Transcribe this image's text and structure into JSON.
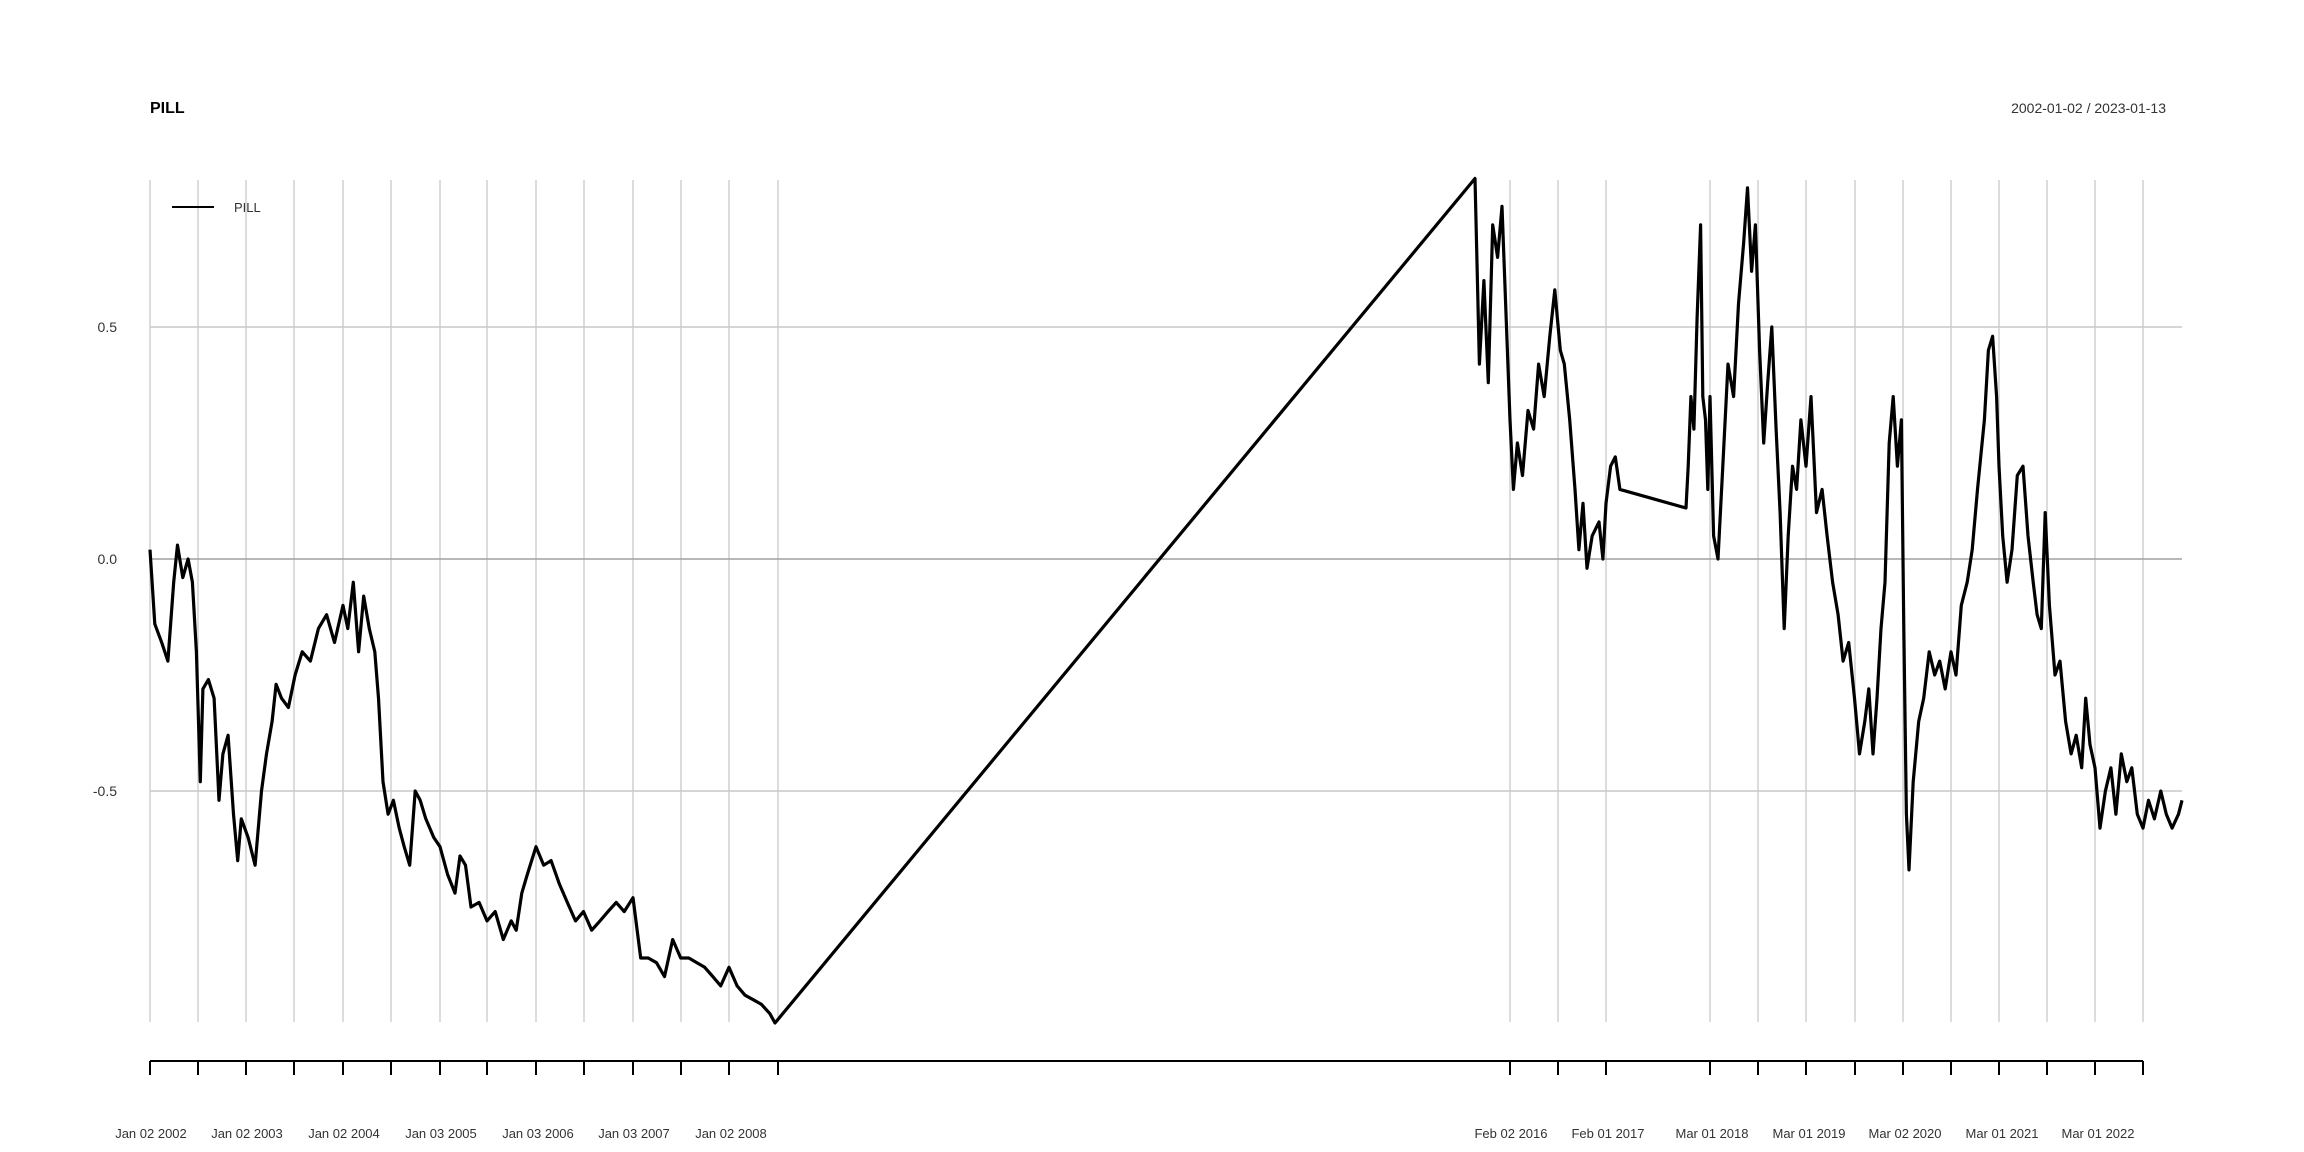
{
  "chart_data": {
    "type": "line",
    "title": "PILL",
    "date_range": "2002-01-02 / 2023-01-13",
    "legend": {
      "position": "top-left",
      "entries": [
        "PILL"
      ]
    },
    "grid": true,
    "ylim": [
      -1.0,
      0.82
    ],
    "yticks": [
      -0.5,
      0.0,
      0.5
    ],
    "ytick_labels": [
      "-0.5",
      "0.0",
      "0.5"
    ],
    "x_axis_type": "date",
    "xtick_labels": [
      "Jan 02 2002",
      "Jan 02 2003",
      "Jan 02 2004",
      "Jan 03 2005",
      "Jan 03 2006",
      "Jan 03 2007",
      "Jan 02 2008",
      "Feb 02 2016",
      "Feb 01 2017",
      "Mar 01 2018",
      "Mar 01 2019",
      "Mar 02 2020",
      "Mar 01 2021",
      "Mar 01 2022"
    ],
    "series": [
      {
        "name": "PILL",
        "color": "#000000",
        "points": [
          [
            "2002-01-02",
            0.02
          ],
          [
            "2002-01-20",
            -0.14
          ],
          [
            "2002-02-15",
            -0.18
          ],
          [
            "2002-03-10",
            -0.22
          ],
          [
            "2002-04-01",
            -0.05
          ],
          [
            "2002-04-15",
            0.03
          ],
          [
            "2002-05-05",
            -0.04
          ],
          [
            "2002-05-25",
            0.0
          ],
          [
            "2002-06-10",
            -0.05
          ],
          [
            "2002-06-25",
            -0.2
          ],
          [
            "2002-07-10",
            -0.48
          ],
          [
            "2002-07-20",
            -0.28
          ],
          [
            "2002-08-10",
            -0.26
          ],
          [
            "2002-09-01",
            -0.3
          ],
          [
            "2002-09-20",
            -0.52
          ],
          [
            "2002-10-05",
            -0.42
          ],
          [
            "2002-10-25",
            -0.38
          ],
          [
            "2002-11-15",
            -0.55
          ],
          [
            "2002-12-01",
            -0.65
          ],
          [
            "2002-12-15",
            -0.56
          ],
          [
            "2003-01-10",
            -0.6
          ],
          [
            "2003-02-05",
            -0.66
          ],
          [
            "2003-03-01",
            -0.5
          ],
          [
            "2003-03-20",
            -0.42
          ],
          [
            "2003-04-10",
            -0.35
          ],
          [
            "2003-04-25",
            -0.27
          ],
          [
            "2003-05-15",
            -0.3
          ],
          [
            "2003-06-10",
            -0.32
          ],
          [
            "2003-07-05",
            -0.25
          ],
          [
            "2003-08-01",
            -0.2
          ],
          [
            "2003-09-01",
            -0.22
          ],
          [
            "2003-10-01",
            -0.15
          ],
          [
            "2003-11-01",
            -0.12
          ],
          [
            "2003-12-01",
            -0.18
          ],
          [
            "2004-01-02",
            -0.1
          ],
          [
            "2004-01-20",
            -0.15
          ],
          [
            "2004-02-10",
            -0.05
          ],
          [
            "2004-03-01",
            -0.2
          ],
          [
            "2004-03-20",
            -0.08
          ],
          [
            "2004-04-10",
            -0.15
          ],
          [
            "2004-05-01",
            -0.2
          ],
          [
            "2004-05-15",
            -0.3
          ],
          [
            "2004-06-01",
            -0.48
          ],
          [
            "2004-06-20",
            -0.55
          ],
          [
            "2004-07-10",
            -0.52
          ],
          [
            "2004-08-01",
            -0.58
          ],
          [
            "2004-08-20",
            -0.62
          ],
          [
            "2004-09-10",
            -0.66
          ],
          [
            "2004-10-01",
            -0.5
          ],
          [
            "2004-10-20",
            -0.52
          ],
          [
            "2004-11-10",
            -0.56
          ],
          [
            "2004-12-10",
            -0.6
          ],
          [
            "2005-01-03",
            -0.62
          ],
          [
            "2005-02-01",
            -0.68
          ],
          [
            "2005-03-01",
            -0.72
          ],
          [
            "2005-03-20",
            -0.64
          ],
          [
            "2005-04-10",
            -0.66
          ],
          [
            "2005-05-01",
            -0.75
          ],
          [
            "2005-06-01",
            -0.74
          ],
          [
            "2005-07-01",
            -0.78
          ],
          [
            "2005-08-01",
            -0.76
          ],
          [
            "2005-09-01",
            -0.82
          ],
          [
            "2005-10-01",
            -0.78
          ],
          [
            "2005-10-20",
            -0.8
          ],
          [
            "2005-11-10",
            -0.72
          ],
          [
            "2005-12-01",
            -0.68
          ],
          [
            "2006-01-03",
            -0.62
          ],
          [
            "2006-02-01",
            -0.66
          ],
          [
            "2006-03-01",
            -0.65
          ],
          [
            "2006-04-01",
            -0.7
          ],
          [
            "2006-05-01",
            -0.74
          ],
          [
            "2006-06-01",
            -0.78
          ],
          [
            "2006-07-01",
            -0.76
          ],
          [
            "2006-08-01",
            -0.8
          ],
          [
            "2006-09-01",
            -0.78
          ],
          [
            "2006-10-01",
            -0.76
          ],
          [
            "2006-11-01",
            -0.74
          ],
          [
            "2006-12-01",
            -0.76
          ],
          [
            "2007-01-03",
            -0.73
          ],
          [
            "2007-02-01",
            -0.86
          ],
          [
            "2007-03-01",
            -0.86
          ],
          [
            "2007-04-01",
            -0.87
          ],
          [
            "2007-05-01",
            -0.9
          ],
          [
            "2007-06-01",
            -0.82
          ],
          [
            "2007-07-01",
            -0.86
          ],
          [
            "2007-08-01",
            -0.86
          ],
          [
            "2007-09-01",
            -0.87
          ],
          [
            "2007-10-01",
            -0.88
          ],
          [
            "2007-11-01",
            -0.9
          ],
          [
            "2007-12-01",
            -0.92
          ],
          [
            "2008-01-02",
            -0.88
          ],
          [
            "2008-02-01",
            -0.92
          ],
          [
            "2008-03-01",
            -0.94
          ],
          [
            "2008-04-01",
            -0.95
          ],
          [
            "2008-05-01",
            -0.96
          ],
          [
            "2008-06-01",
            -0.98
          ],
          [
            "2008-06-20",
            -1.0
          ],
          [
            "2015-11-15",
            0.82
          ],
          [
            "2015-11-25",
            0.42
          ],
          [
            "2015-12-05",
            0.6
          ],
          [
            "2015-12-15",
            0.38
          ],
          [
            "2015-12-25",
            0.72
          ],
          [
            "2016-01-05",
            0.65
          ],
          [
            "2016-01-15",
            0.76
          ],
          [
            "2016-01-25",
            0.5
          ],
          [
            "2016-02-02",
            0.3
          ],
          [
            "2016-02-15",
            0.15
          ],
          [
            "2016-03-01",
            0.25
          ],
          [
            "2016-03-20",
            0.18
          ],
          [
            "2016-04-10",
            0.32
          ],
          [
            "2016-05-01",
            0.28
          ],
          [
            "2016-05-20",
            0.42
          ],
          [
            "2016-06-10",
            0.35
          ],
          [
            "2016-07-01",
            0.48
          ],
          [
            "2016-07-20",
            0.58
          ],
          [
            "2016-08-10",
            0.45
          ],
          [
            "2016-08-25",
            0.42
          ],
          [
            "2016-09-15",
            0.3
          ],
          [
            "2016-10-05",
            0.15
          ],
          [
            "2016-10-20",
            0.02
          ],
          [
            "2016-11-05",
            0.12
          ],
          [
            "2016-11-20",
            -0.02
          ],
          [
            "2016-12-10",
            0.05
          ],
          [
            "2017-01-05",
            0.08
          ],
          [
            "2017-01-20",
            0.0
          ],
          [
            "2017-02-01",
            0.12
          ],
          [
            "2017-02-15",
            0.2
          ],
          [
            "2017-03-01",
            0.22
          ],
          [
            "2017-03-15",
            0.15
          ],
          [
            "2017-10-01",
            0.11
          ],
          [
            "2017-10-15",
            0.2
          ],
          [
            "2017-11-01",
            0.35
          ],
          [
            "2017-11-20",
            0.28
          ],
          [
            "2017-12-10",
            0.52
          ],
          [
            "2018-01-01",
            0.72
          ],
          [
            "2018-01-15",
            0.35
          ],
          [
            "2018-02-01",
            0.3
          ],
          [
            "2018-02-15",
            0.15
          ],
          [
            "2018-03-01",
            0.35
          ],
          [
            "2018-03-15",
            0.05
          ],
          [
            "2018-04-01",
            0.0
          ],
          [
            "2018-04-20",
            0.2
          ],
          [
            "2018-05-10",
            0.42
          ],
          [
            "2018-06-01",
            0.35
          ],
          [
            "2018-06-20",
            0.55
          ],
          [
            "2018-07-10",
            0.68
          ],
          [
            "2018-07-25",
            0.8
          ],
          [
            "2018-08-10",
            0.62
          ],
          [
            "2018-08-25",
            0.72
          ],
          [
            "2018-09-10",
            0.45
          ],
          [
            "2018-09-25",
            0.25
          ],
          [
            "2018-10-10",
            0.38
          ],
          [
            "2018-10-25",
            0.5
          ],
          [
            "2018-11-10",
            0.28
          ],
          [
            "2018-11-25",
            0.1
          ],
          [
            "2018-12-10",
            -0.15
          ],
          [
            "2018-12-25",
            0.05
          ],
          [
            "2019-01-10",
            0.2
          ],
          [
            "2019-01-25",
            0.15
          ],
          [
            "2019-02-10",
            0.3
          ],
          [
            "2019-03-01",
            0.2
          ],
          [
            "2019-03-20",
            0.35
          ],
          [
            "2019-04-10",
            0.1
          ],
          [
            "2019-05-01",
            0.15
          ],
          [
            "2019-05-20",
            0.05
          ],
          [
            "2019-06-10",
            -0.05
          ],
          [
            "2019-07-01",
            -0.12
          ],
          [
            "2019-07-20",
            -0.22
          ],
          [
            "2019-08-10",
            -0.18
          ],
          [
            "2019-09-01",
            -0.3
          ],
          [
            "2019-09-20",
            -0.42
          ],
          [
            "2019-10-10",
            -0.35
          ],
          [
            "2019-10-25",
            -0.28
          ],
          [
            "2019-11-10",
            -0.42
          ],
          [
            "2019-11-25",
            -0.3
          ],
          [
            "2019-12-10",
            -0.15
          ],
          [
            "2019-12-25",
            -0.05
          ],
          [
            "2020-01-10",
            0.25
          ],
          [
            "2020-01-25",
            0.35
          ],
          [
            "2020-02-10",
            0.2
          ],
          [
            "2020-02-25",
            0.3
          ],
          [
            "2020-03-05",
            -0.15
          ],
          [
            "2020-03-15",
            -0.55
          ],
          [
            "2020-03-25",
            -0.67
          ],
          [
            "2020-04-10",
            -0.48
          ],
          [
            "2020-05-01",
            -0.35
          ],
          [
            "2020-05-20",
            -0.3
          ],
          [
            "2020-06-10",
            -0.2
          ],
          [
            "2020-07-01",
            -0.25
          ],
          [
            "2020-07-20",
            -0.22
          ],
          [
            "2020-08-10",
            -0.28
          ],
          [
            "2020-09-01",
            -0.2
          ],
          [
            "2020-09-20",
            -0.25
          ],
          [
            "2020-10-10",
            -0.1
          ],
          [
            "2020-11-01",
            -0.05
          ],
          [
            "2020-11-20",
            0.02
          ],
          [
            "2020-12-10",
            0.15
          ],
          [
            "2021-01-05",
            0.3
          ],
          [
            "2021-01-20",
            0.45
          ],
          [
            "2021-02-05",
            0.48
          ],
          [
            "2021-02-20",
            0.35
          ],
          [
            "2021-03-01",
            0.2
          ],
          [
            "2021-03-15",
            0.05
          ],
          [
            "2021-04-01",
            -0.05
          ],
          [
            "2021-04-20",
            0.02
          ],
          [
            "2021-05-10",
            0.18
          ],
          [
            "2021-06-01",
            0.2
          ],
          [
            "2021-06-20",
            0.05
          ],
          [
            "2021-07-10",
            -0.05
          ],
          [
            "2021-07-25",
            -0.12
          ],
          [
            "2021-08-10",
            -0.15
          ],
          [
            "2021-08-25",
            0.1
          ],
          [
            "2021-09-10",
            -0.1
          ],
          [
            "2021-10-01",
            -0.25
          ],
          [
            "2021-10-20",
            -0.22
          ],
          [
            "2021-11-10",
            -0.35
          ],
          [
            "2021-12-01",
            -0.42
          ],
          [
            "2021-12-20",
            -0.38
          ],
          [
            "2022-01-10",
            -0.45
          ],
          [
            "2022-01-25",
            -0.3
          ],
          [
            "2022-02-10",
            -0.4
          ],
          [
            "2022-03-01",
            -0.45
          ],
          [
            "2022-03-20",
            -0.58
          ],
          [
            "2022-04-10",
            -0.5
          ],
          [
            "2022-05-01",
            -0.45
          ],
          [
            "2022-05-20",
            -0.55
          ],
          [
            "2022-06-10",
            -0.42
          ],
          [
            "2022-07-01",
            -0.48
          ],
          [
            "2022-07-20",
            -0.45
          ],
          [
            "2022-08-10",
            -0.55
          ],
          [
            "2022-09-01",
            -0.58
          ],
          [
            "2022-09-20",
            -0.52
          ],
          [
            "2022-10-10",
            -0.56
          ],
          [
            "2022-11-01",
            -0.5
          ],
          [
            "2022-11-20",
            -0.55
          ],
          [
            "2022-12-10",
            -0.58
          ],
          [
            "2023-01-01",
            -0.55
          ],
          [
            "2023-01-13",
            -0.52
          ]
        ]
      }
    ]
  }
}
